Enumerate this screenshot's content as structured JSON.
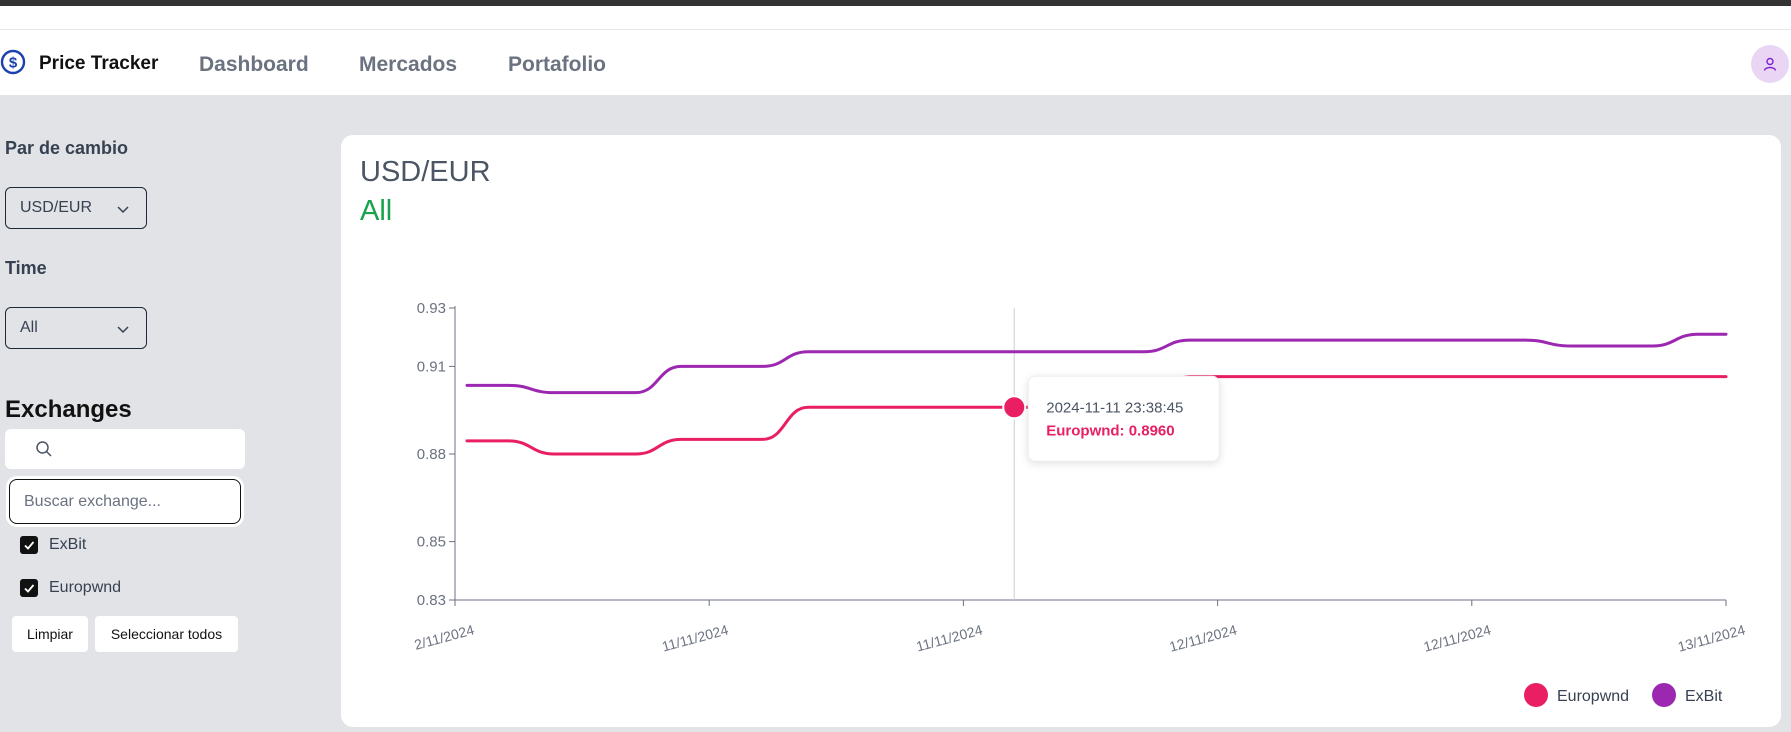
{
  "app": {
    "brand": "Price Tracker",
    "logo_icon": "dollar-circle-icon",
    "avatar_icon": "user-icon"
  },
  "nav": {
    "links": [
      "Dashboard",
      "Mercados",
      "Portafolio"
    ]
  },
  "sidebar": {
    "pair_label": "Par de cambio",
    "pair_value": "USD/EUR",
    "time_label": "Time",
    "time_value": "All",
    "exchanges_title": "Exchanges",
    "search_placeholder": "Buscar exchange...",
    "exchanges": [
      {
        "name": "ExBit",
        "checked": true
      },
      {
        "name": "Europwnd",
        "checked": true
      }
    ],
    "clear_button": "Limpiar",
    "select_all_button": "Seleccionar todos"
  },
  "card": {
    "pair": "USD/EUR",
    "range": "All"
  },
  "colors": {
    "europwnd": "#e91e63",
    "exbit": "#9c27b0",
    "range_green": "#16a34a",
    "avatar_bg": "#ead5f5"
  },
  "chart_data": {
    "type": "line",
    "y_ticks": [
      "0.93",
      "0.91",
      "0.88",
      "0.85",
      "0.83"
    ],
    "ylim": [
      0.83,
      0.93
    ],
    "x_ticks": [
      "2/11/2024",
      "11/11/2024",
      "11/11/2024",
      "12/11/2024",
      "12/11/2024",
      "13/11/2024"
    ],
    "x": [
      0,
      0.5,
      1,
      1.5,
      2,
      2.5,
      3,
      3.5,
      4,
      4.5,
      5
    ],
    "series": [
      {
        "name": "ExBit",
        "values": [
          0.9035,
          0.901,
          0.91,
          0.915,
          0.915,
          0.915,
          0.919,
          0.919,
          0.919,
          0.917,
          0.921
        ]
      },
      {
        "name": "Europwnd",
        "values": [
          0.8845,
          0.88,
          0.885,
          0.896,
          0.896,
          0.896,
          0.9065,
          0.9065,
          0.9065,
          0.9065,
          0.9065
        ]
      }
    ],
    "tooltip": {
      "timestamp": "2024-11-11 23:38:45",
      "text": "Europwnd: 0.8960",
      "x": 2.2,
      "value": 0.896
    },
    "legend": [
      {
        "name": "Europwnd"
      },
      {
        "name": "ExBit"
      }
    ],
    "legend_position": "bottom-right"
  }
}
